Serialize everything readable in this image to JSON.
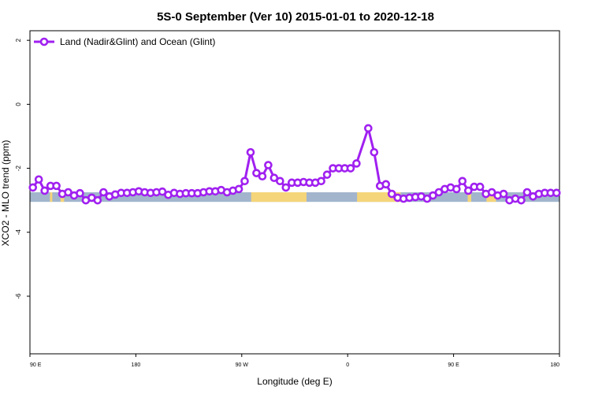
{
  "chart_data": {
    "type": "line",
    "title": "5S-0 September (Ver 10)   2015-01-01 to 2020-12-18",
    "xlabel": "Longitude (deg E)",
    "ylabel": "XCO2 - MLO trend (ppm)",
    "x_ticks": [
      {
        "value": 90,
        "label": "90 E"
      },
      {
        "value": 180,
        "label": "180"
      },
      {
        "value": 270,
        "label": "90 W"
      },
      {
        "value": 360,
        "label": "0"
      },
      {
        "value": 450,
        "label": "90 E"
      },
      {
        "value": 540,
        "label": "180"
      }
    ],
    "y_ticks": [
      {
        "value": 2,
        "label": "2"
      },
      {
        "value": 0,
        "label": "0"
      },
      {
        "value": -2,
        "label": "-2"
      },
      {
        "value": -4,
        "label": "-4"
      },
      {
        "value": -6,
        "label": "-6"
      }
    ],
    "xlim": [
      90,
      540
    ],
    "ylim": [
      -7.8,
      2.3
    ],
    "grid": false,
    "legend": {
      "position": "top-left"
    },
    "colors": {
      "series": "#a020f0",
      "ocean": "#a2b5cd",
      "land": "#f5d57a"
    },
    "surface_band": {
      "y_top": -2.75,
      "y_bottom": -3.05,
      "land_segments": [
        [
          107,
          109
        ],
        [
          116,
          119
        ],
        [
          278,
          325
        ],
        [
          368,
          405
        ],
        [
          462,
          465
        ],
        [
          478,
          486
        ]
      ]
    },
    "series": [
      {
        "name": "Land (Nadir&Glint) and Ocean (Glint)",
        "points": [
          [
            92.5,
            -2.6
          ],
          [
            97.5,
            -2.35
          ],
          [
            102.5,
            -2.7
          ],
          [
            107.5,
            -2.55
          ],
          [
            112.5,
            -2.55
          ],
          [
            117.5,
            -2.8
          ],
          [
            122.5,
            -2.75
          ],
          [
            127.5,
            -2.85
          ],
          [
            132.5,
            -2.78
          ],
          [
            137.5,
            -3.0
          ],
          [
            142.5,
            -2.92
          ],
          [
            147.5,
            -3.0
          ],
          [
            152.5,
            -2.75
          ],
          [
            157.5,
            -2.88
          ],
          [
            162.5,
            -2.82
          ],
          [
            167.5,
            -2.77
          ],
          [
            172.5,
            -2.77
          ],
          [
            177.5,
            -2.75
          ],
          [
            182.5,
            -2.72
          ],
          [
            187.5,
            -2.75
          ],
          [
            192.5,
            -2.77
          ],
          [
            197.5,
            -2.75
          ],
          [
            202.5,
            -2.73
          ],
          [
            207.5,
            -2.83
          ],
          [
            212.5,
            -2.77
          ],
          [
            217.5,
            -2.8
          ],
          [
            222.5,
            -2.78
          ],
          [
            227.5,
            -2.78
          ],
          [
            232.5,
            -2.78
          ],
          [
            237.5,
            -2.75
          ],
          [
            242.5,
            -2.72
          ],
          [
            247.5,
            -2.72
          ],
          [
            252.5,
            -2.68
          ],
          [
            257.5,
            -2.75
          ],
          [
            262.5,
            -2.7
          ],
          [
            267.5,
            -2.65
          ],
          [
            272.5,
            -2.4
          ],
          [
            277.5,
            -1.5
          ],
          [
            282.5,
            -2.15
          ],
          [
            287.5,
            -2.25
          ],
          [
            292.5,
            -1.9
          ],
          [
            297.5,
            -2.3
          ],
          [
            302.5,
            -2.4
          ],
          [
            307.5,
            -2.6
          ],
          [
            312.5,
            -2.45
          ],
          [
            317.5,
            -2.45
          ],
          [
            322.5,
            -2.43
          ],
          [
            327.5,
            -2.45
          ],
          [
            332.5,
            -2.45
          ],
          [
            337.5,
            -2.4
          ],
          [
            342.5,
            -2.2
          ],
          [
            347.5,
            -2.0
          ],
          [
            352.5,
            -2.0
          ],
          [
            357.5,
            -2.0
          ],
          [
            362.5,
            -2.0
          ],
          [
            367.5,
            -1.85
          ],
          [
            377.5,
            -0.75
          ],
          [
            382.5,
            -1.5
          ],
          [
            387.5,
            -2.55
          ],
          [
            392.5,
            -2.5
          ],
          [
            397.5,
            -2.8
          ],
          [
            402.5,
            -2.92
          ],
          [
            407.5,
            -2.95
          ],
          [
            412.5,
            -2.92
          ],
          [
            417.5,
            -2.9
          ],
          [
            422.5,
            -2.88
          ],
          [
            427.5,
            -2.95
          ],
          [
            432.5,
            -2.85
          ],
          [
            437.5,
            -2.75
          ],
          [
            442.5,
            -2.65
          ],
          [
            447.5,
            -2.6
          ],
          [
            452.5,
            -2.65
          ],
          [
            457.5,
            -2.4
          ],
          [
            462.5,
            -2.7
          ],
          [
            467.5,
            -2.58
          ],
          [
            472.5,
            -2.58
          ],
          [
            477.5,
            -2.8
          ],
          [
            482.5,
            -2.75
          ],
          [
            487.5,
            -2.85
          ],
          [
            492.5,
            -2.8
          ],
          [
            497.5,
            -3.0
          ],
          [
            502.5,
            -2.95
          ],
          [
            507.5,
            -3.0
          ],
          [
            512.5,
            -2.75
          ],
          [
            517.5,
            -2.88
          ],
          [
            522.5,
            -2.8
          ],
          [
            527.5,
            -2.77
          ],
          [
            532.5,
            -2.77
          ],
          [
            537.5,
            -2.77
          ]
        ],
        "gaps_after_x": [
          372.5
        ]
      }
    ]
  }
}
